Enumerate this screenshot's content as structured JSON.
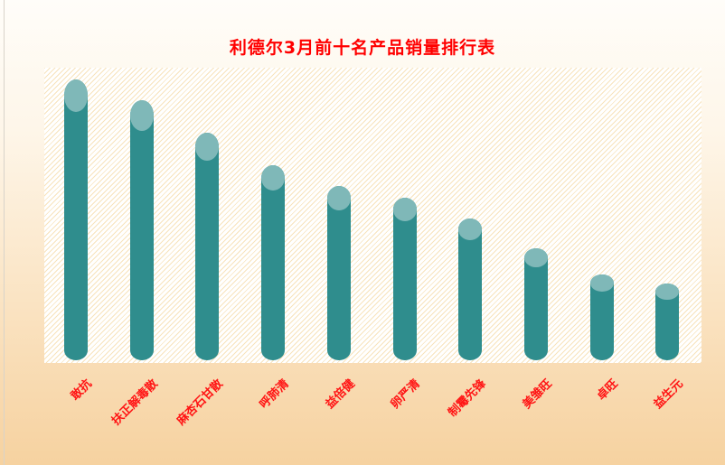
{
  "chart_data": {
    "type": "bar",
    "bar_style": "cylinder",
    "title": "利德尔3月前十名产品销量排行表",
    "categories": [
      "敢抗",
      "扶正解毒散",
      "麻杏石甘散",
      "呼肺清",
      "益倍健",
      "卵严清",
      "制霉先锋",
      "美雏旺",
      "卓旺",
      "益生元"
    ],
    "values": [
      95,
      88,
      77,
      66,
      59,
      55,
      48,
      38,
      29,
      26
    ],
    "value_note": "no numeric axis or data labels are shown; values are estimated percent of plot height",
    "xlabel": "",
    "ylabel": "",
    "ylim": [
      0,
      100
    ],
    "grid": false,
    "legend": false,
    "category_label_rotation_deg": -45,
    "colors": {
      "bar_body": "#2f8d8d",
      "bar_cap": "#7fb8b8",
      "title_text": "#ff0000",
      "category_label": "#ff1414",
      "plot_background": "#ffffff",
      "plot_hatch": "#f4d7a0",
      "page_background_top": "#fffdf9",
      "page_background_bottom": "#f6d2a0"
    }
  }
}
